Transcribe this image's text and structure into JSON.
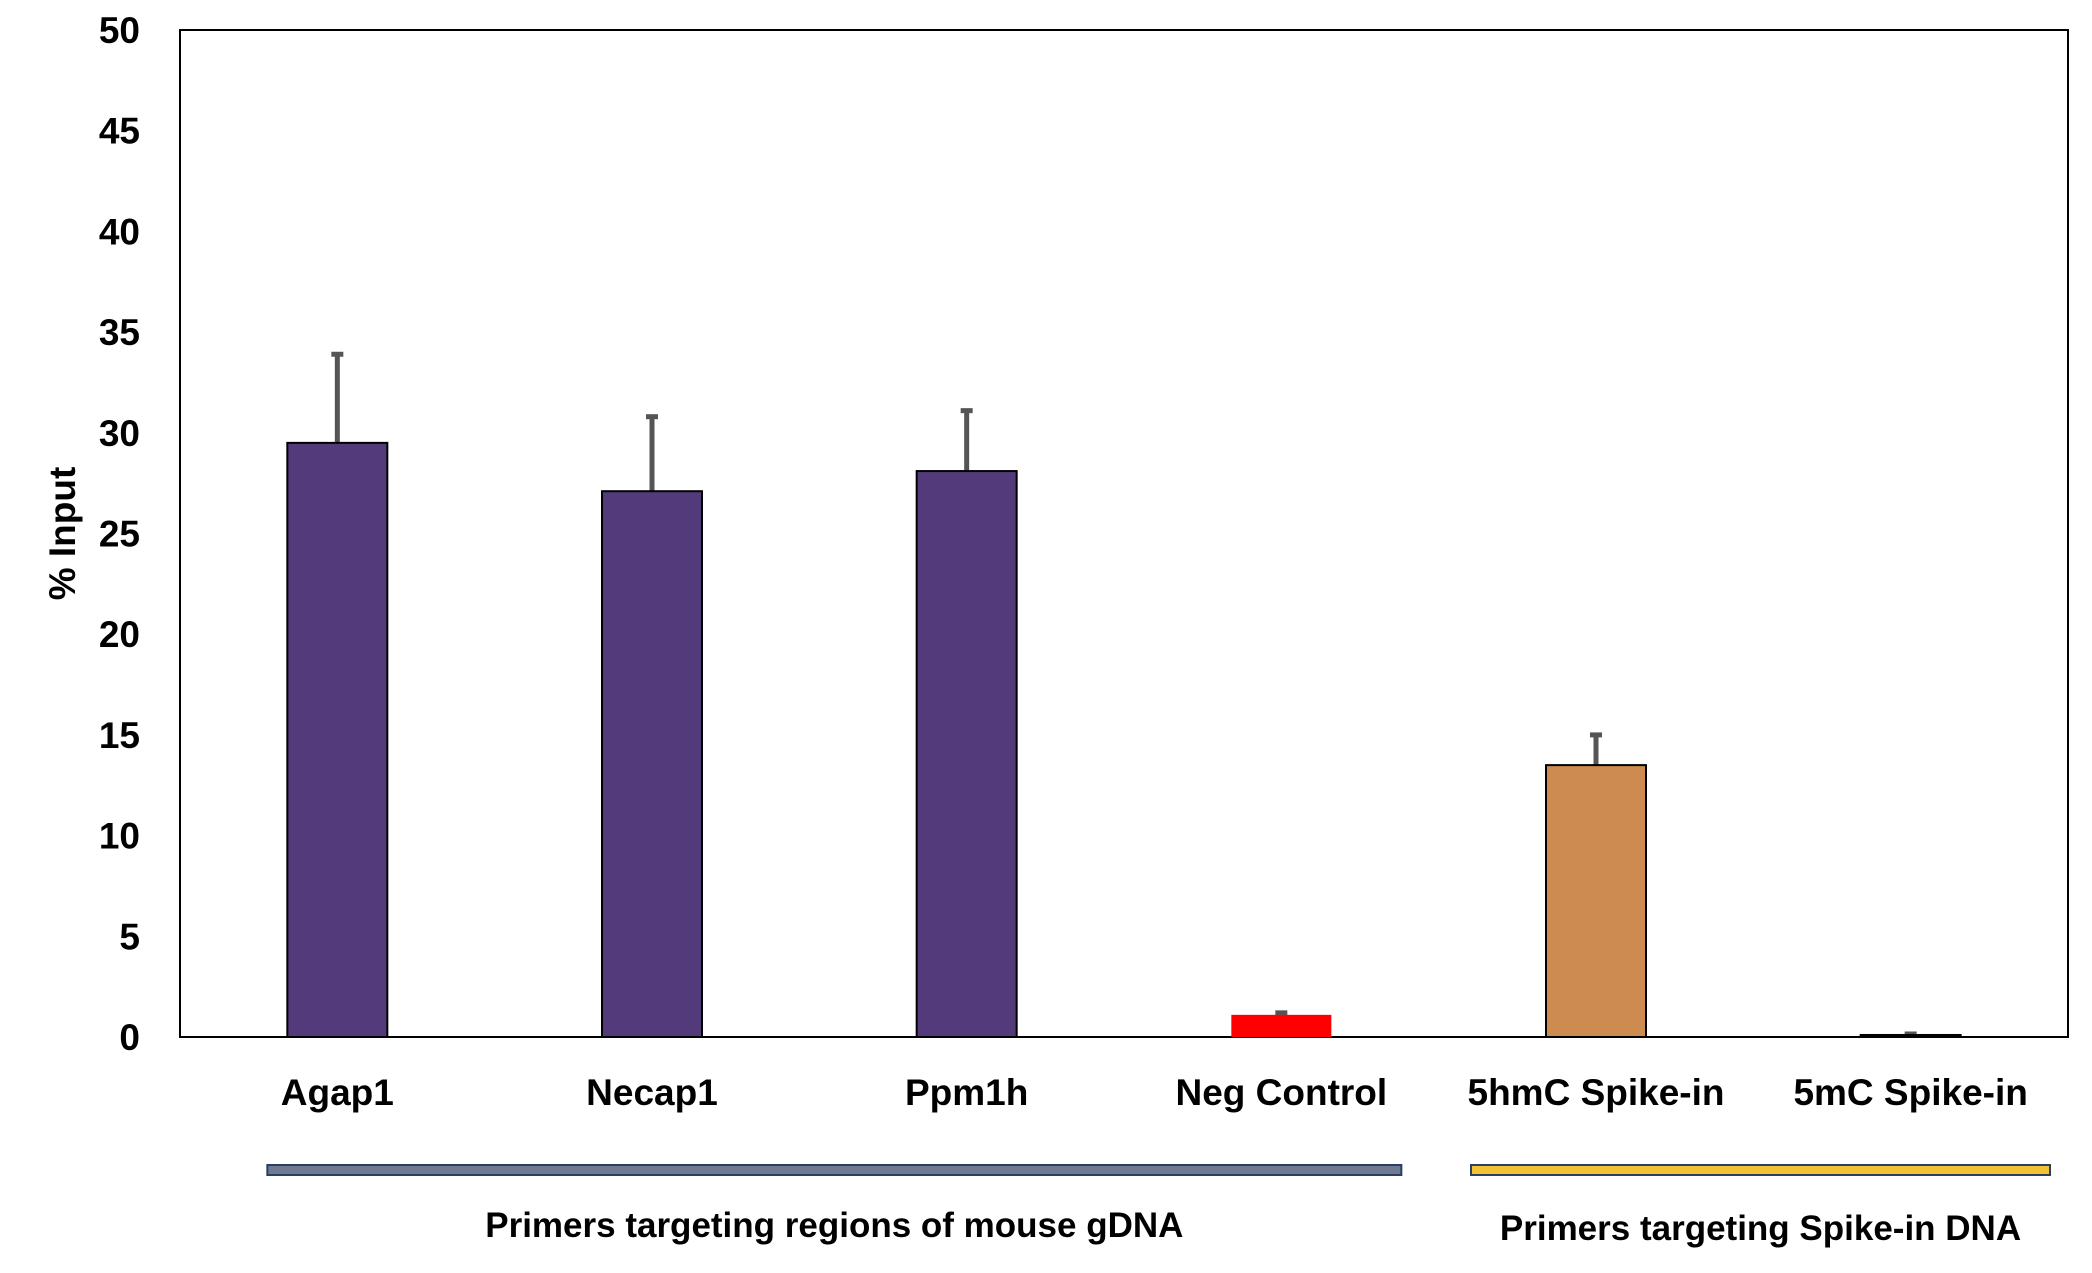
{
  "chart_data": {
    "type": "bar",
    "title": "",
    "xlabel": "",
    "ylabel": "% Input",
    "ylim": [
      0,
      50
    ],
    "yticks": [
      0,
      5,
      10,
      15,
      20,
      25,
      30,
      35,
      40,
      45,
      50
    ],
    "grid": false,
    "legend": "none",
    "categories": [
      "Agap1",
      "Necap1",
      "Ppm1h",
      "Neg Control",
      "5hmC Spike-in",
      "5mC Spike-in"
    ],
    "values": [
      29.5,
      27.1,
      28.1,
      1.1,
      13.5,
      0.1
    ],
    "error_bars": [
      4.4,
      3.7,
      3.0,
      0.1,
      1.5,
      0.05
    ],
    "bar_colors": [
      "#533a7b",
      "#533a7b",
      "#533a7b",
      "#ff0000",
      "#cd8b4f",
      "#533a7b"
    ],
    "error_bar_color": "#555555",
    "groups": [
      {
        "label": "Primers targeting regions of mouse gDNA",
        "from_category": 0,
        "to_category": 3,
        "color": "#6d7a8f"
      },
      {
        "label": "Primers targeting Spike-in DNA",
        "from_category": 4,
        "to_category": 5,
        "color": "#f2c230"
      }
    ]
  }
}
